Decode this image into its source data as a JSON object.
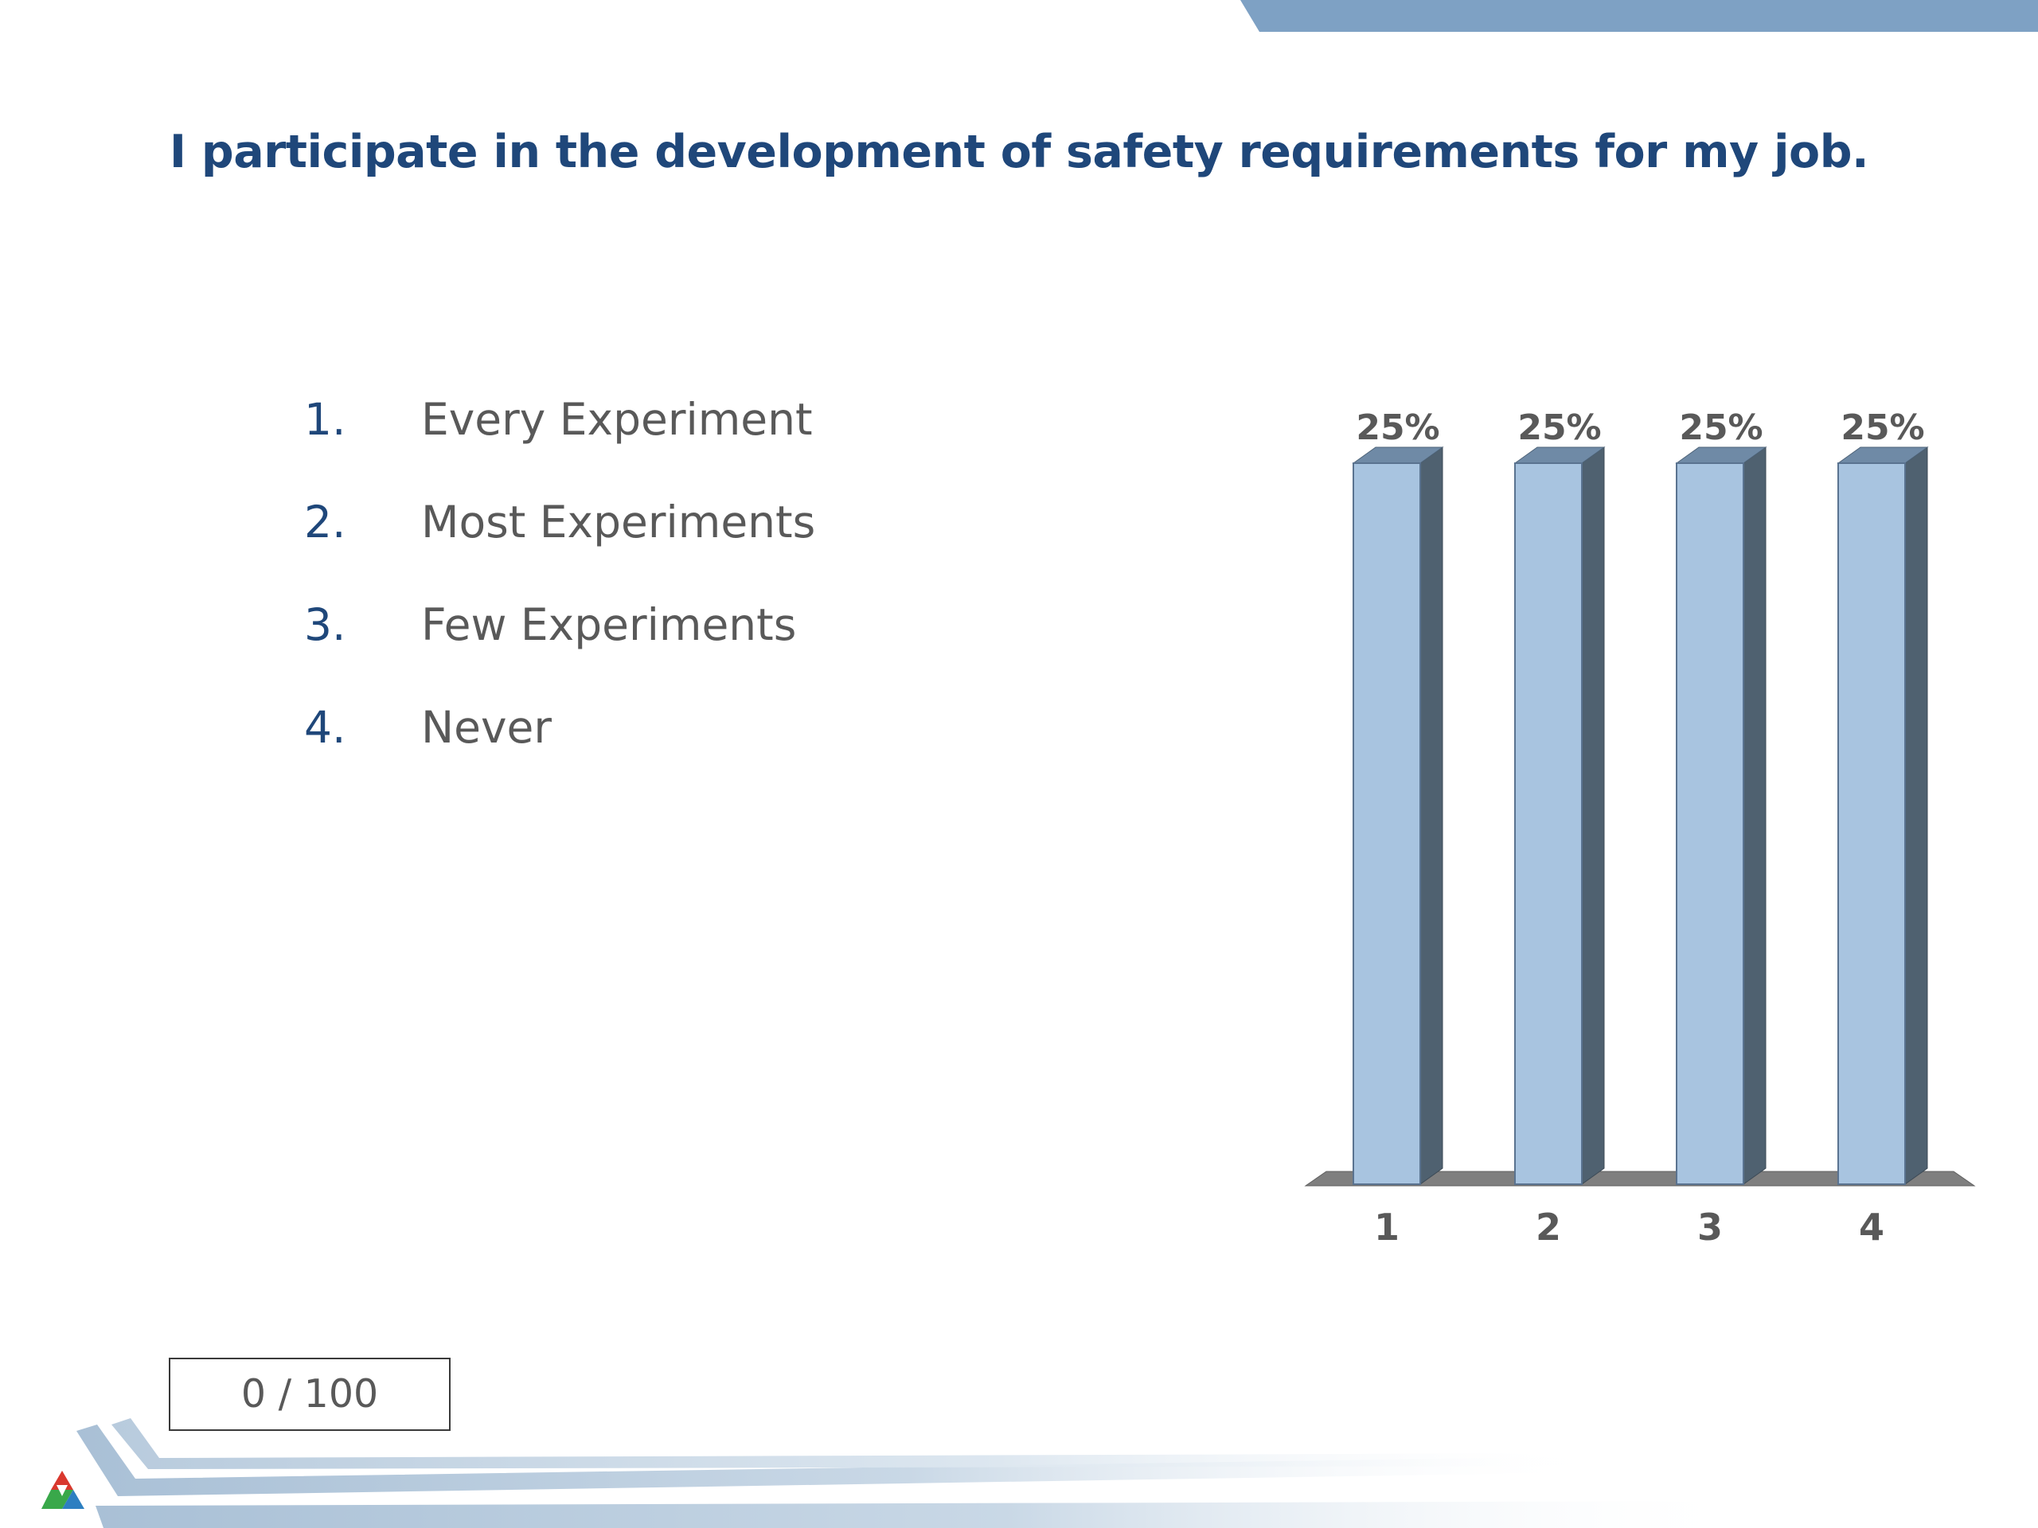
{
  "slide": {
    "title": "I participate in the development of safety requirements for my job."
  },
  "options": [
    {
      "number": "1.",
      "label": "Every Experiment"
    },
    {
      "number": "2.",
      "label": "Most Experiments"
    },
    {
      "number": "3.",
      "label": "Few Experiments"
    },
    {
      "number": "4.",
      "label": "Never"
    }
  ],
  "response_counter": "0 / 100",
  "colors": {
    "title": "#1f477a",
    "bar_front": "#a8c4e0",
    "bar_side": "#4f6170",
    "bar_top": "#6f8aa6",
    "floor": "#7f7f7f",
    "band": "#7ea1c4"
  },
  "chart_data": {
    "type": "bar",
    "categories": [
      "1",
      "2",
      "3",
      "4"
    ],
    "values": [
      25,
      25,
      25,
      25
    ],
    "data_labels": [
      "25%",
      "25%",
      "25%",
      "25%"
    ],
    "ylim": [
      0,
      25
    ],
    "grid": false,
    "style": "3d"
  }
}
